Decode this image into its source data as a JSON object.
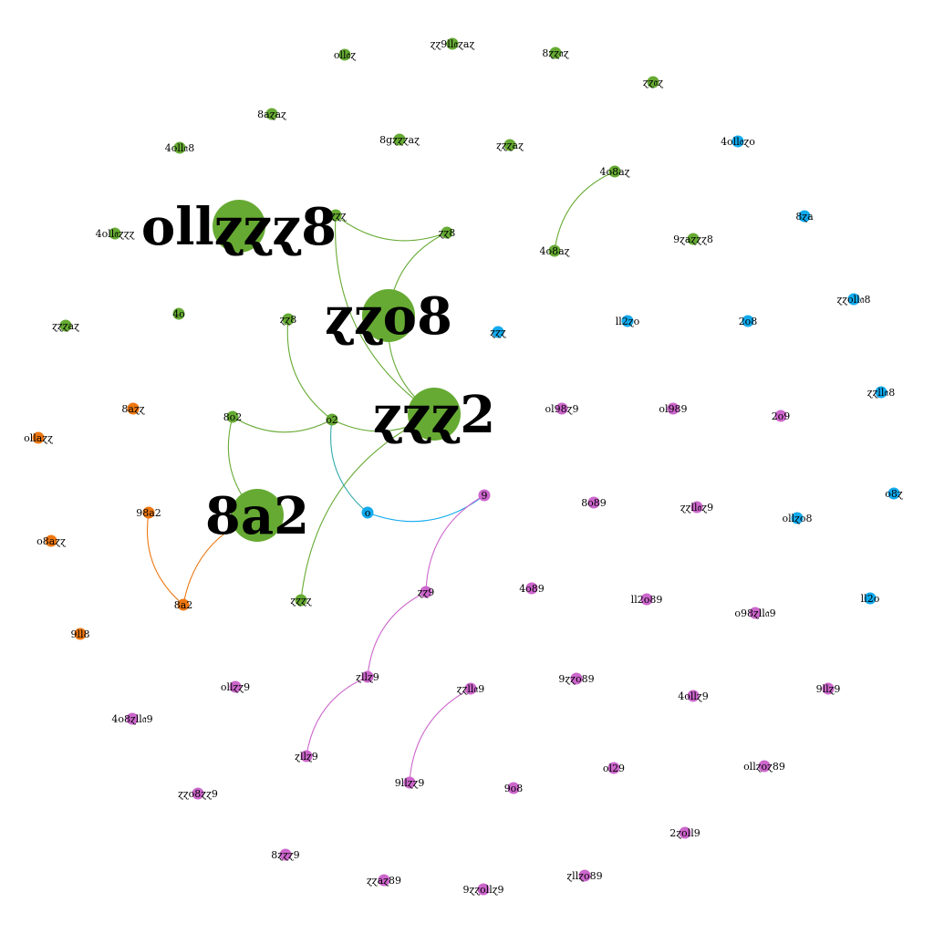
{
  "graph": {
    "colors": {
      "green": "#66aa33",
      "blue": "#11aaee",
      "orange": "#ee7711",
      "purple": "#cc66cc"
    },
    "nodes": [
      {
        "id": "n1",
        "label": "oll𝔞ɀ",
        "color": "green",
        "weight": 1
      },
      {
        "id": "n2",
        "label": "ɀɀ9ll𝔞ɀaɀ",
        "color": "green",
        "weight": 1
      },
      {
        "id": "n3",
        "label": "8ɀɀ𝔞ɀ",
        "color": "green",
        "weight": 1
      },
      {
        "id": "n4",
        "label": "ɀɀ𝔞ɀ",
        "color": "green",
        "weight": 1
      },
      {
        "id": "n5",
        "label": "8aɀaɀ",
        "color": "green",
        "weight": 1
      },
      {
        "id": "n6",
        "label": "8gɀɀɀaɀ",
        "color": "green",
        "weight": 1
      },
      {
        "id": "n7",
        "label": "ɀɀɀaɀ",
        "color": "green",
        "weight": 1
      },
      {
        "id": "n8",
        "label": "4oll𝔞8",
        "color": "green",
        "weight": 1
      },
      {
        "id": "n9",
        "label": "4o8aɀ",
        "color": "green",
        "weight": 1
      },
      {
        "id": "n10",
        "label": "4oll𝔞ɀɀɀ",
        "color": "green",
        "weight": 1
      },
      {
        "id": "n11",
        "label": "ollɀɀɀ8",
        "color": "green",
        "weight": 5
      },
      {
        "id": "n12",
        "label": "ɀɀɀɀ",
        "color": "green",
        "weight": 1
      },
      {
        "id": "n13",
        "label": "ɀɀ8",
        "color": "green",
        "weight": 1
      },
      {
        "id": "n14",
        "label": "4o8aɀ",
        "color": "green",
        "weight": 1
      },
      {
        "id": "n15",
        "label": "9ɀaɀɀɀ8",
        "color": "green",
        "weight": 1
      },
      {
        "id": "n16",
        "label": "ɀɀɀaɀ",
        "color": "green",
        "weight": 1
      },
      {
        "id": "n17",
        "label": "ɀɀ8",
        "color": "green",
        "weight": 1
      },
      {
        "id": "n18",
        "label": "4o",
        "color": "green",
        "weight": 1
      },
      {
        "id": "n19",
        "label": "ɀɀo8",
        "color": "green",
        "weight": 5
      },
      {
        "id": "n20",
        "label": "ɀɀɀ2",
        "color": "green",
        "weight": 5
      },
      {
        "id": "n21",
        "label": "8o2",
        "color": "green",
        "weight": 1
      },
      {
        "id": "n22",
        "label": "o2",
        "color": "green",
        "weight": 1
      },
      {
        "id": "n23",
        "label": "8a2",
        "color": "green",
        "weight": 5
      },
      {
        "id": "n24",
        "label": "ɀɀɀɀ",
        "color": "green",
        "weight": 1
      },
      {
        "id": "n25",
        "label": "4oll𝔞ɀo",
        "color": "blue",
        "weight": 1
      },
      {
        "id": "n26",
        "label": "8ɀa",
        "color": "blue",
        "weight": 1
      },
      {
        "id": "n27",
        "label": "ɀɀoll𝔞8",
        "color": "blue",
        "weight": 1
      },
      {
        "id": "n28",
        "label": "ɀɀɀ",
        "color": "blue",
        "weight": 1
      },
      {
        "id": "n29",
        "label": "ll2ɀo",
        "color": "blue",
        "weight": 1
      },
      {
        "id": "n30",
        "label": "2o8",
        "color": "blue",
        "weight": 1
      },
      {
        "id": "n31",
        "label": "ɀɀll𝔞8",
        "color": "blue",
        "weight": 1
      },
      {
        "id": "n32",
        "label": "o",
        "color": "blue",
        "weight": 1
      },
      {
        "id": "n33",
        "label": "o8ɀ",
        "color": "blue",
        "weight": 1
      },
      {
        "id": "n34",
        "label": "ollɀo8",
        "color": "blue",
        "weight": 1
      },
      {
        "id": "n35",
        "label": "ll2o",
        "color": "blue",
        "weight": 1
      },
      {
        "id": "n36",
        "label": "8aɀɀ",
        "color": "orange",
        "weight": 1
      },
      {
        "id": "n37",
        "label": "ollaɀɀ",
        "color": "orange",
        "weight": 1
      },
      {
        "id": "n38",
        "label": "98a2",
        "color": "orange",
        "weight": 1
      },
      {
        "id": "n39",
        "label": "o8aɀɀ",
        "color": "orange",
        "weight": 1
      },
      {
        "id": "n40",
        "label": "8a2",
        "color": "orange",
        "weight": 1
      },
      {
        "id": "n41",
        "label": "9ll8",
        "color": "orange",
        "weight": 1
      },
      {
        "id": "n42",
        "label": "ol98ɀ9",
        "color": "purple",
        "weight": 1
      },
      {
        "id": "n43",
        "label": "ol989",
        "color": "purple",
        "weight": 1
      },
      {
        "id": "n44",
        "label": "2o9",
        "color": "purple",
        "weight": 1
      },
      {
        "id": "n45",
        "label": "9",
        "color": "purple",
        "weight": 1
      },
      {
        "id": "n46",
        "label": "8o89",
        "color": "purple",
        "weight": 1
      },
      {
        "id": "n47",
        "label": "ɀɀll𝔞ɀ9",
        "color": "purple",
        "weight": 1
      },
      {
        "id": "n48",
        "label": "4o89",
        "color": "purple",
        "weight": 1
      },
      {
        "id": "n49",
        "label": "ɀɀ9",
        "color": "purple",
        "weight": 1
      },
      {
        "id": "n50",
        "label": "ll2o89",
        "color": "purple",
        "weight": 1
      },
      {
        "id": "n51",
        "label": "o98ɀll𝔞9",
        "color": "purple",
        "weight": 1
      },
      {
        "id": "n52",
        "label": "ollɀɀ9",
        "color": "purple",
        "weight": 1
      },
      {
        "id": "n53",
        "label": "4o8ɀll𝔞9",
        "color": "purple",
        "weight": 1
      },
      {
        "id": "n54",
        "label": "ɀllɀ9",
        "color": "purple",
        "weight": 1
      },
      {
        "id": "n55",
        "label": "9ɀɀo89",
        "color": "purple",
        "weight": 1
      },
      {
        "id": "n56",
        "label": "4ollɀ9",
        "color": "purple",
        "weight": 1
      },
      {
        "id": "n57",
        "label": "ɀɀll𝔞9",
        "color": "purple",
        "weight": 1
      },
      {
        "id": "n58",
        "label": "9llɀ9",
        "color": "purple",
        "weight": 1
      },
      {
        "id": "n59",
        "label": "ɀllɀ9",
        "color": "purple",
        "weight": 1
      },
      {
        "id": "n60",
        "label": "ol29",
        "color": "purple",
        "weight": 1
      },
      {
        "id": "n61",
        "label": "ollɀoɀ89",
        "color": "purple",
        "weight": 1
      },
      {
        "id": "n62",
        "label": "ɀɀo8ɀɀ9",
        "color": "purple",
        "weight": 1
      },
      {
        "id": "n63",
        "label": "9llɀɀ9",
        "color": "purple",
        "weight": 1
      },
      {
        "id": "n64",
        "label": "9o8",
        "color": "purple",
        "weight": 1
      },
      {
        "id": "n65",
        "label": "2ɀoll9",
        "color": "purple",
        "weight": 1
      },
      {
        "id": "n66",
        "label": "8ɀɀɀ9",
        "color": "purple",
        "weight": 1
      },
      {
        "id": "n67",
        "label": "ɀɀaɀ89",
        "color": "purple",
        "weight": 1
      },
      {
        "id": "n68",
        "label": "9ɀɀollɀ9",
        "color": "purple",
        "weight": 1
      },
      {
        "id": "n69",
        "label": "ɀllɀo89",
        "color": "purple",
        "weight": 1
      }
    ],
    "edges": [
      {
        "source": "n9",
        "target": "n14",
        "color": "green"
      },
      {
        "source": "n12",
        "target": "n13",
        "color": "green"
      },
      {
        "source": "n13",
        "target": "n19",
        "color": "green"
      },
      {
        "source": "n12",
        "target": "n20",
        "color": "green"
      },
      {
        "source": "n19",
        "target": "n20",
        "color": "green"
      },
      {
        "source": "n17",
        "target": "n22",
        "color": "green"
      },
      {
        "source": "n21",
        "target": "n22",
        "color": "green"
      },
      {
        "source": "n21",
        "target": "n23",
        "color": "green"
      },
      {
        "source": "n22",
        "target": "n20",
        "color": "green"
      },
      {
        "source": "n20",
        "target": "n24",
        "color": "green"
      },
      {
        "source": "n22",
        "target": "n32",
        "color": "teal"
      },
      {
        "source": "n32",
        "target": "n45",
        "color": "blue"
      },
      {
        "source": "n23",
        "target": "n40",
        "color": "orange"
      },
      {
        "source": "n38",
        "target": "n40",
        "color": "orange"
      },
      {
        "source": "n45",
        "target": "n49",
        "color": "purple"
      },
      {
        "source": "n49",
        "target": "n54",
        "color": "purple"
      },
      {
        "source": "n54",
        "target": "n59",
        "color": "purple"
      },
      {
        "source": "n57",
        "target": "n63",
        "color": "purple"
      }
    ]
  }
}
